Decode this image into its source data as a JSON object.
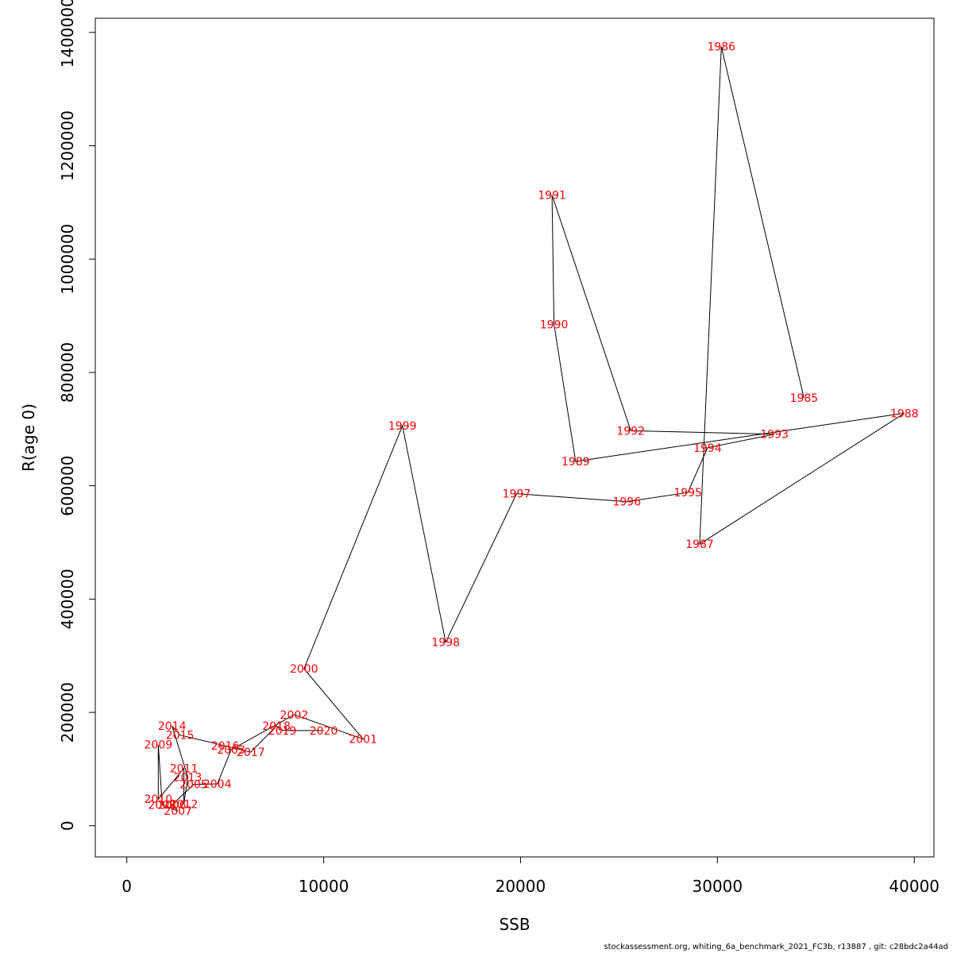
{
  "chart_data": {
    "type": "line",
    "xlabel": "SSB",
    "ylabel": "R(age 0)",
    "xlim": [
      -1600,
      41000
    ],
    "ylim": [
      -55000,
      1425000
    ],
    "x_ticks": [
      0,
      10000,
      20000,
      30000,
      40000
    ],
    "x_tick_labels": [
      "0",
      "10000",
      "20000",
      "30000",
      "40000"
    ],
    "y_ticks": [
      0,
      200000,
      400000,
      600000,
      800000,
      1000000,
      1200000,
      1400000
    ],
    "y_tick_labels": [
      "0",
      "200000",
      "400000",
      "600000",
      "800000",
      "1000000",
      "1200000",
      "1400000"
    ],
    "grid": false,
    "line_color": "#000000",
    "label_color": "#ff0000",
    "points": [
      {
        "year": "1985",
        "x": 34400,
        "y": 755000
      },
      {
        "year": "1986",
        "x": 30200,
        "y": 1375000
      },
      {
        "year": "1987",
        "x": 29100,
        "y": 497000
      },
      {
        "year": "1988",
        "x": 39500,
        "y": 728000
      },
      {
        "year": "1989",
        "x": 22800,
        "y": 643000
      },
      {
        "year": "1990",
        "x": 21700,
        "y": 885000
      },
      {
        "year": "1991",
        "x": 21600,
        "y": 1113000
      },
      {
        "year": "1992",
        "x": 25600,
        "y": 697000
      },
      {
        "year": "1993",
        "x": 32900,
        "y": 691000
      },
      {
        "year": "1994",
        "x": 29500,
        "y": 667000
      },
      {
        "year": "1995",
        "x": 28500,
        "y": 588000
      },
      {
        "year": "1996",
        "x": 25400,
        "y": 572000
      },
      {
        "year": "1997",
        "x": 19800,
        "y": 586000
      },
      {
        "year": "1998",
        "x": 16200,
        "y": 324000
      },
      {
        "year": "1999",
        "x": 14000,
        "y": 706000
      },
      {
        "year": "2000",
        "x": 9000,
        "y": 277000
      },
      {
        "year": "2001",
        "x": 12000,
        "y": 153000
      },
      {
        "year": "2002",
        "x": 8500,
        "y": 196000
      },
      {
        "year": "2003",
        "x": 5300,
        "y": 134000
      },
      {
        "year": "2004",
        "x": 4600,
        "y": 74000
      },
      {
        "year": "2005",
        "x": 3400,
        "y": 73000
      },
      {
        "year": "2006",
        "x": 2300,
        "y": 37000
      },
      {
        "year": "2007",
        "x": 2600,
        "y": 26000
      },
      {
        "year": "2008",
        "x": 1800,
        "y": 37000
      },
      {
        "year": "2009",
        "x": 1600,
        "y": 143000
      },
      {
        "year": "2010",
        "x": 1600,
        "y": 47000
      },
      {
        "year": "2011",
        "x": 2900,
        "y": 101000
      },
      {
        "year": "2012",
        "x": 2900,
        "y": 38000
      },
      {
        "year": "2013",
        "x": 3100,
        "y": 86000
      },
      {
        "year": "2014",
        "x": 2300,
        "y": 176000
      },
      {
        "year": "2015",
        "x": 2700,
        "y": 160000
      },
      {
        "year": "2016",
        "x": 5000,
        "y": 141000
      },
      {
        "year": "2017",
        "x": 6300,
        "y": 130000
      },
      {
        "year": "2018",
        "x": 7600,
        "y": 176000
      },
      {
        "year": "2019",
        "x": 7900,
        "y": 168000
      },
      {
        "year": "2020",
        "x": 10000,
        "y": 168000
      }
    ]
  },
  "footer": "stockassessment.org, whiting_6a_benchmark_2021_FC3b, r13887 , git: c28bdc2a44ad"
}
